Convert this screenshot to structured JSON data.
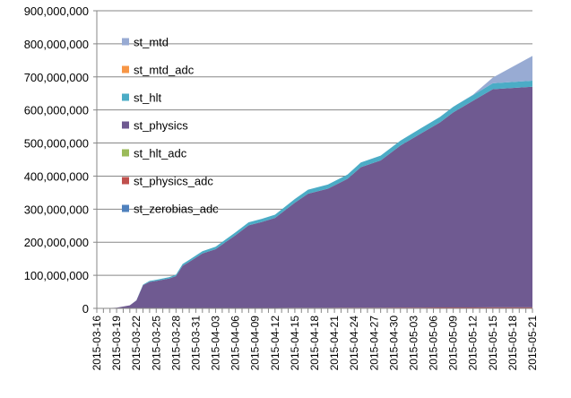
{
  "chart_data": {
    "type": "area",
    "stacked": true,
    "title": "",
    "xlabel": "",
    "ylabel": "",
    "ylim": [
      0,
      900000000
    ],
    "yticks": [
      0,
      100000000,
      200000000,
      300000000,
      400000000,
      500000000,
      600000000,
      700000000,
      800000000,
      900000000
    ],
    "ytick_labels": [
      "0",
      "100,000,000",
      "200,000,000",
      "300,000,000",
      "400,000,000",
      "500,000,000",
      "600,000,000",
      "700,000,000",
      "800,000,000",
      "900,000,000"
    ],
    "x_tick_labels": [
      "2015-03-16",
      "2015-03-19",
      "2015-03-22",
      "2015-03-25",
      "2015-03-28",
      "2015-03-31",
      "2015-04-03",
      "2015-04-06",
      "2015-04-09",
      "2015-04-12",
      "2015-04-15",
      "2015-04-18",
      "2015-04-21",
      "2015-04-24",
      "2015-04-27",
      "2015-04-30",
      "2015-05-03",
      "2015-05-06",
      "2015-05-09",
      "2015-05-12",
      "2015-05-15",
      "2015-05-18",
      "2015-05-21"
    ],
    "grid": true,
    "legend_position": "left-inside",
    "x": [
      "2015-03-16",
      "2015-03-19",
      "2015-03-21",
      "2015-03-22",
      "2015-03-23",
      "2015-03-24",
      "2015-03-25",
      "2015-03-27",
      "2015-03-28",
      "2015-03-29",
      "2015-03-30",
      "2015-04-01",
      "2015-04-03",
      "2015-04-06",
      "2015-04-08",
      "2015-04-10",
      "2015-04-12",
      "2015-04-15",
      "2015-04-17",
      "2015-04-20",
      "2015-04-23",
      "2015-04-25",
      "2015-04-28",
      "2015-05-01",
      "2015-05-04",
      "2015-05-07",
      "2015-05-09",
      "2015-05-12",
      "2015-05-15",
      "2015-05-21"
    ],
    "series": [
      {
        "name": "st_zerobias_adc",
        "color": "#4f81bd",
        "values": [
          0,
          0,
          0,
          0,
          0,
          0,
          0,
          0,
          0,
          0,
          0,
          0,
          0,
          0,
          0,
          0,
          0,
          0,
          0,
          0,
          0,
          0,
          0,
          0,
          0,
          0,
          0,
          0,
          0,
          0
        ]
      },
      {
        "name": "st_physics_adc",
        "color": "#c0504d",
        "values": [
          0,
          0,
          0,
          0,
          0,
          0,
          0,
          500000,
          500000,
          700000,
          700000,
          900000,
          1000000,
          1100000,
          1200000,
          1300000,
          1400000,
          1600000,
          1700000,
          1800000,
          2000000,
          2100000,
          2200000,
          2400000,
          2500000,
          2600000,
          2700000,
          2800000,
          2900000,
          3100000
        ]
      },
      {
        "name": "st_hlt_adc",
        "color": "#9bbb59",
        "values": [
          0,
          0,
          0,
          0,
          0,
          0,
          0,
          0,
          0,
          0,
          0,
          0,
          0,
          0,
          0,
          0,
          0,
          0,
          0,
          0,
          0,
          0,
          0,
          0,
          0,
          0,
          0,
          0,
          0,
          0
        ]
      },
      {
        "name": "st_physics",
        "color": "#6f5a91",
        "values": [
          0,
          2000000,
          9000000,
          24000000,
          70000000,
          80000000,
          83000000,
          90000000,
          97000000,
          128000000,
          140000000,
          165000000,
          178000000,
          220000000,
          250000000,
          260000000,
          272000000,
          318000000,
          345000000,
          360000000,
          390000000,
          425000000,
          445000000,
          490000000,
          525000000,
          560000000,
          590000000,
          625000000,
          660000000,
          667000000
        ]
      },
      {
        "name": "st_hlt",
        "color": "#4bacc6",
        "values": [
          0,
          0,
          0,
          500000,
          2000000,
          3000000,
          3500000,
          4000000,
          4500000,
          5500000,
          6000000,
          7000000,
          7500000,
          8500000,
          9000000,
          9500000,
          10000000,
          11000000,
          12000000,
          12500000,
          13000000,
          14000000,
          14500000,
          15000000,
          16000000,
          16500000,
          17000000,
          17500000,
          18000000,
          18500000
        ]
      },
      {
        "name": "st_mtd_adc",
        "color": "#f79646",
        "values": [
          0,
          0,
          0,
          0,
          0,
          0,
          0,
          0,
          0,
          0,
          0,
          0,
          0,
          0,
          0,
          0,
          0,
          0,
          0,
          0,
          0,
          0,
          0,
          0,
          0,
          0,
          0,
          0,
          0,
          0
        ]
      },
      {
        "name": "st_mtd",
        "color": "#98abd3",
        "values": [
          0,
          0,
          0,
          0,
          0,
          0,
          0,
          0,
          0,
          0,
          0,
          0,
          0,
          0,
          0,
          0,
          0,
          0,
          0,
          0,
          0,
          0,
          0,
          0,
          0,
          0,
          0,
          1000000,
          17000000,
          75000000
        ]
      }
    ],
    "legend_order": [
      "st_mtd",
      "st_mtd_adc",
      "st_hlt",
      "st_physics",
      "st_hlt_adc",
      "st_physics_adc",
      "st_zerobias_adc"
    ]
  }
}
